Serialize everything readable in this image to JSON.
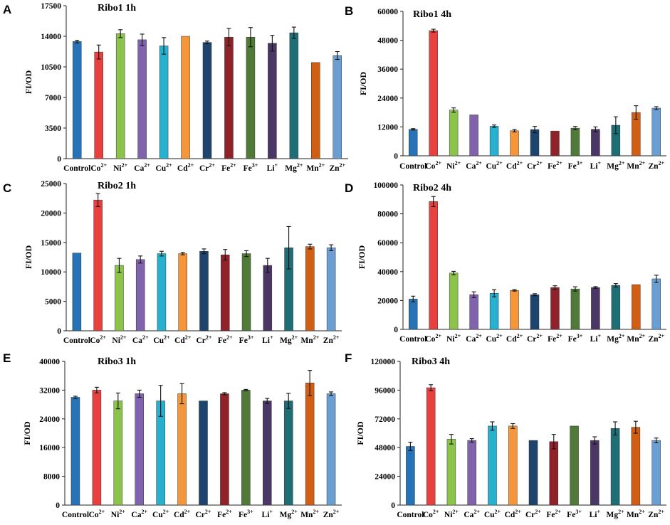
{
  "chart_data": [
    {
      "type": "bar",
      "panel": "A",
      "title": "Ribo1 1h",
      "ylabel": "FI/OD",
      "ylim": [
        0,
        17500
      ],
      "yticks": [
        0,
        3500,
        7000,
        10500,
        14000,
        17500
      ],
      "categories": [
        "Control",
        "Co",
        "Ni",
        "Ca",
        "Cu",
        "Cd",
        "Cr",
        "Fe",
        "Fe",
        "Li",
        "Mg",
        "Mn",
        "Zn"
      ],
      "charges": [
        "",
        "2+",
        "2+",
        "2+",
        "2+",
        "2+",
        "2+",
        "2+",
        "3+",
        "+",
        "2+",
        "2+",
        "2+"
      ],
      "values": [
        13400,
        12200,
        14300,
        13600,
        12900,
        14000,
        13300,
        13900,
        13900,
        13200,
        14400,
        11000,
        11800
      ],
      "errors": [
        150,
        800,
        450,
        650,
        950,
        0,
        150,
        1000,
        1100,
        900,
        650,
        0,
        450
      ]
    },
    {
      "type": "bar",
      "panel": "B",
      "title": "Ribo1 4h",
      "ylabel": "FI/OD",
      "ylim": [
        0,
        60000
      ],
      "yticks": [
        0,
        12000,
        24000,
        36000,
        48000,
        60000
      ],
      "categories": [
        "Control",
        "Co",
        "Ni",
        "Ca",
        "Cu",
        "Cd",
        "Cr",
        "Fe",
        "Fe",
        "Li",
        "Mg",
        "Mn",
        "Zn"
      ],
      "charges": [
        "",
        "2+",
        "2+",
        "2+",
        "2+",
        "2+",
        "2+",
        "2+",
        "3+",
        "+",
        "2+",
        "2+",
        "2+"
      ],
      "values": [
        11000,
        52000,
        19000,
        17000,
        12300,
        10400,
        10900,
        10300,
        11500,
        11000,
        12700,
        18000,
        19800
      ],
      "errors": [
        300,
        600,
        900,
        0,
        500,
        500,
        1300,
        0,
        700,
        1000,
        3500,
        2800,
        600
      ]
    },
    {
      "type": "bar",
      "panel": "C",
      "title": "Ribo2 1h",
      "ylabel": "FI/OD",
      "ylim": [
        0,
        25000
      ],
      "yticks": [
        0,
        5000,
        10000,
        15000,
        20000,
        25000
      ],
      "categories": [
        "Control",
        "Co",
        "Ni",
        "Ca",
        "Cu",
        "Cd",
        "Cr",
        "Fe",
        "Fe",
        "Li",
        "Mg",
        "Mn",
        "Zn"
      ],
      "charges": [
        "",
        "2+",
        "2+",
        "2+",
        "2+",
        "2+",
        "2+",
        "2+",
        "3+",
        "+",
        "2+",
        "2+",
        "2+"
      ],
      "values": [
        13200,
        22200,
        11100,
        12100,
        13100,
        13100,
        13500,
        12900,
        13100,
        11100,
        14100,
        14300,
        14100
      ],
      "errors": [
        0,
        1100,
        1200,
        600,
        400,
        200,
        400,
        900,
        500,
        1200,
        3600,
        400,
        500
      ]
    },
    {
      "type": "bar",
      "panel": "D",
      "title": "Ribo2 4h",
      "ylabel": "FI/OD",
      "ylim": [
        0,
        100000
      ],
      "yticks": [
        0,
        20000,
        40000,
        60000,
        80000,
        100000
      ],
      "categories": [
        "Control",
        "Co",
        "Ni",
        "Ca",
        "Cu",
        "Cd",
        "Cr",
        "Fe",
        "Fe",
        "Li",
        "Mg",
        "Mn",
        "Zn"
      ],
      "charges": [
        "",
        "2+",
        "2+",
        "2+",
        "2+",
        "2+",
        "2+",
        "2+",
        "3+",
        "+",
        "2+",
        "2+",
        "2+"
      ],
      "values": [
        21000,
        88500,
        39000,
        24000,
        25000,
        27000,
        24000,
        29000,
        28000,
        29000,
        30500,
        31000,
        35000
      ],
      "errors": [
        2000,
        3500,
        1200,
        2000,
        2500,
        500,
        700,
        1200,
        1500,
        600,
        1200,
        0,
        2500
      ]
    },
    {
      "type": "bar",
      "panel": "E",
      "title": "Ribo3 1h",
      "ylabel": "FI/OD",
      "ylim": [
        0,
        40000
      ],
      "yticks": [
        0,
        8000,
        16000,
        24000,
        32000,
        40000
      ],
      "categories": [
        "Control",
        "Co",
        "Ni",
        "Ca",
        "Cu",
        "Cd",
        "Cr",
        "Fe",
        "Fe",
        "Li",
        "Mg",
        "Mn",
        "Zn"
      ],
      "charges": [
        "",
        "2+",
        "2+",
        "2+",
        "2+",
        "2+",
        "2+",
        "2+",
        "3+",
        "+",
        "2+",
        "2+",
        "2+"
      ],
      "values": [
        30000,
        32000,
        29000,
        31000,
        29000,
        31000,
        29000,
        31000,
        32000,
        29000,
        29000,
        34000,
        31000
      ],
      "errors": [
        300,
        800,
        2200,
        1000,
        4300,
        2800,
        0,
        300,
        200,
        700,
        2100,
        3500,
        500
      ]
    },
    {
      "type": "bar",
      "panel": "F",
      "title": "Ribo3 4h",
      "ylabel": "FI/OD",
      "ylim": [
        0,
        120000
      ],
      "yticks": [
        0,
        24000,
        48000,
        72000,
        96000,
        120000
      ],
      "categories": [
        "Control",
        "Co",
        "Ni",
        "Ca",
        "Cu",
        "Cd",
        "Cr",
        "Fe",
        "Fe",
        "Li",
        "Mg",
        "Mn",
        "Zn"
      ],
      "charges": [
        "",
        "2+",
        "2+",
        "2+",
        "2+",
        "2+",
        "2+",
        "2+",
        "3+",
        "+",
        "2+",
        "2+",
        "2+"
      ],
      "values": [
        49000,
        98000,
        55000,
        54000,
        66000,
        66000,
        54000,
        53000,
        66000,
        54000,
        64000,
        65000,
        54000
      ],
      "errors": [
        3500,
        2500,
        4000,
        1500,
        3500,
        2000,
        0,
        6000,
        0,
        3000,
        5500,
        5000,
        2000
      ]
    }
  ],
  "colors": [
    "#2673b8",
    "#e8403f",
    "#8cc34a",
    "#8162ad",
    "#27b1cf",
    "#f5963a",
    "#1c446f",
    "#8f2329",
    "#4f7a37",
    "#4a3765",
    "#1e6e76",
    "#d25e13",
    "#6b9fd4"
  ]
}
